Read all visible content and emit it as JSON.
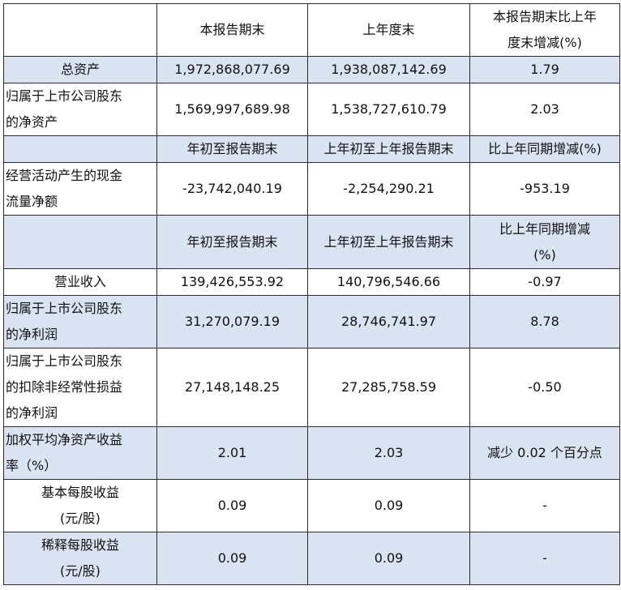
{
  "header": {
    "col1": "本报告期末",
    "col2": "上年度末",
    "col3_line1": "本报告期末比上年",
    "col3_line2": "度末增减(%)"
  },
  "rows_a": [
    {
      "label": "总资产",
      "v1": "1,972,868,077.69",
      "v2": "1,938,087,142.69",
      "v3": "1.79"
    },
    {
      "label_line1": "归属于上市公司股东",
      "label_line2": "的净资产",
      "v1": "1,569,997,689.98",
      "v2": "1,538,727,610.79",
      "v3": "2.03"
    }
  ],
  "subheader_1": {
    "col1": "年初至报告期末",
    "col2": "上年初至上年报告期末",
    "col3": "比上年同期增减(%)"
  },
  "row_cashflow": {
    "label_line1": "经营活动产生的现金",
    "label_line2": "流量净额",
    "v1": "-23,742,040.19",
    "v2": "-2,254,290.21",
    "v3": "-953.19"
  },
  "subheader_2": {
    "col1": "年初至报告期末",
    "col2": "上年初至上年报告期末",
    "col3_line1": "比上年同期增减",
    "col3_line2": "(%)"
  },
  "rows_b": {
    "revenue": {
      "label": "营业收入",
      "v1": "139,426,553.92",
      "v2": "140,796,546.66",
      "v3": "-0.97"
    },
    "net_profit": {
      "label_line1": "归属于上市公司股东",
      "label_line2": "的净利润",
      "v1": "31,270,079.19",
      "v2": "28,746,741.97",
      "v3": "8.78"
    },
    "net_profit_deducted": {
      "label_line1": "归属于上市公司股东",
      "label_line2": "的扣除非经常性损益",
      "label_line3": "的净利润",
      "v1": "27,148,148.25",
      "v2": "27,285,758.59",
      "v3": "-0.50"
    },
    "roe": {
      "label_line1": "加权平均净资产收益",
      "label_line2": "率（%）",
      "v1": "2.01",
      "v2": "2.03",
      "v3": "减少 0.02 个百分点"
    },
    "eps_basic": {
      "label_line1": "基本每股收益",
      "label_line2": "(元/股)",
      "v1": "0.09",
      "v2": "0.09",
      "v3": "-"
    },
    "eps_diluted": {
      "label_line1": "稀释每股收益",
      "label_line2": "(元/股)",
      "v1": "0.09",
      "v2": "0.09",
      "v3": "-"
    }
  }
}
